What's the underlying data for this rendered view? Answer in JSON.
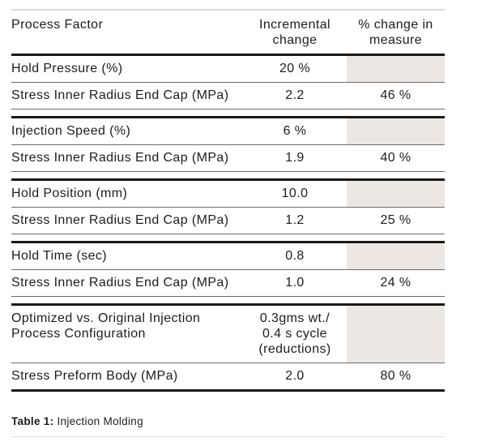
{
  "document": {
    "header": {
      "col1": "Process Factor",
      "col2": "Incremental\nchange",
      "col3": "% change in\nmeasure"
    },
    "groups": [
      {
        "factor_name": "Hold Pressure (%)",
        "factor_change": "20 %",
        "result_name": "Stress Inner Radius End Cap (MPa)",
        "result_change": "2.2",
        "result_pct": "46 %"
      },
      {
        "factor_name": "Injection Speed (%)",
        "factor_change": "6 %",
        "result_name": "Stress Inner Radius End Cap (MPa)",
        "result_change": "1.9",
        "result_pct": "40 %"
      },
      {
        "factor_name": "Hold Position (mm)",
        "factor_change": "10.0",
        "result_name": "Stress Inner Radius End Cap (MPa)",
        "result_change": "1.2",
        "result_pct": "25 %"
      },
      {
        "factor_name": "Hold Time (sec)",
        "factor_change": "0.8",
        "result_name": "Stress Inner Radius End Cap (MPa)",
        "result_change": "1.0",
        "result_pct": "24 %"
      },
      {
        "factor_name": "Optimized vs. Original Injection\nProcess Configuration",
        "factor_change": "0.3gms wt./\n0.4 s cycle\n(reductions)",
        "result_name": "Stress Preform Body (MPa)",
        "result_change": "2.0",
        "result_pct": "80 %"
      }
    ],
    "caption": {
      "label": "Table 1:",
      "text": "Injection Molding"
    },
    "colors": {
      "text": "#1d1d1b",
      "rule_thick": "#1a1a18",
      "rule_thin": "#6e6a66",
      "rule_light": "#e4ddd5",
      "shaded_cell": "#ece7e2"
    }
  }
}
